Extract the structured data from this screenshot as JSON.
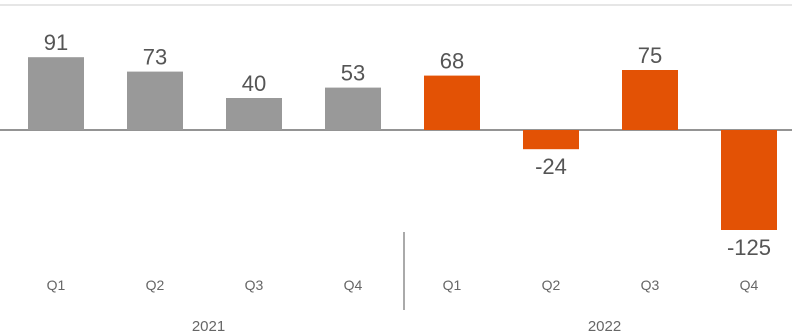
{
  "chart_data": {
    "type": "bar",
    "categories": [
      "Q1",
      "Q2",
      "Q3",
      "Q4",
      "Q1",
      "Q2",
      "Q3",
      "Q4"
    ],
    "groups": [
      {
        "label": "2021",
        "count": 4,
        "color": "#999999"
      },
      {
        "label": "2022",
        "count": 4,
        "color": "#E35205"
      }
    ],
    "values": [
      91,
      73,
      40,
      53,
      68,
      -24,
      75,
      -125
    ],
    "data_labels": [
      "91",
      "73",
      "40",
      "53",
      "68",
      "-24",
      "75",
      "-125"
    ],
    "ylim": [
      -130,
      130
    ],
    "grid": false,
    "title": "",
    "xlabel": "",
    "ylabel": ""
  }
}
